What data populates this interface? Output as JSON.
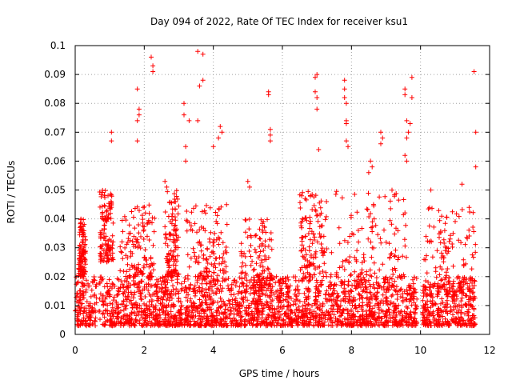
{
  "chart_data": {
    "type": "scatter",
    "title": "Day 094 of 2022, Rate Of TEC Index for receiver ksu1",
    "xlabel": "GPS time / hours",
    "ylabel": "ROTI / TECUs",
    "xlim": [
      0,
      12
    ],
    "ylim": [
      0,
      0.1
    ],
    "xticks": [
      "0",
      "2",
      "4",
      "6",
      "8",
      "10",
      "12"
    ],
    "yticks": [
      "0",
      "0.01",
      "0.02",
      "0.03",
      "0.04",
      "0.05",
      "0.06",
      "0.07",
      "0.08",
      "0.09",
      "0.1"
    ],
    "grid": true,
    "marker": "plus",
    "color": "#ff0000",
    "data_note": "Dense point cloud; base density approximated by a generator, notable outliers listed explicitly.",
    "baseline": {
      "x_range": [
        0,
        11.6
      ],
      "gap_hours": [
        [
          0.62,
          0.68
        ],
        [
          3.1,
          3.16
        ],
        [
          9.9,
          10.06
        ]
      ],
      "typical_range": [
        0.003,
        0.02
      ],
      "upper_clusters": [
        {
          "x": [
            0.1,
            0.3
          ],
          "y": [
            0.02,
            0.04
          ]
        },
        {
          "x": [
            0.7,
            1.1
          ],
          "y": [
            0.025,
            0.05
          ]
        },
        {
          "x": [
            1.3,
            2.3
          ],
          "y": [
            0.02,
            0.045
          ]
        },
        {
          "x": [
            2.6,
            3.0
          ],
          "y": [
            0.02,
            0.05
          ]
        },
        {
          "x": [
            3.2,
            4.4
          ],
          "y": [
            0.02,
            0.045
          ]
        },
        {
          "x": [
            4.8,
            5.7
          ],
          "y": [
            0.015,
            0.04
          ]
        },
        {
          "x": [
            6.5,
            7.3
          ],
          "y": [
            0.02,
            0.05
          ]
        },
        {
          "x": [
            7.4,
            9.6
          ],
          "y": [
            0.02,
            0.05
          ]
        },
        {
          "x": [
            10.1,
            11.6
          ],
          "y": [
            0.015,
            0.045
          ]
        }
      ]
    },
    "outliers": [
      {
        "x": 1.05,
        "y": 0.07
      },
      {
        "x": 1.05,
        "y": 0.067
      },
      {
        "x": 1.8,
        "y": 0.085
      },
      {
        "x": 1.85,
        "y": 0.078
      },
      {
        "x": 1.85,
        "y": 0.076
      },
      {
        "x": 1.8,
        "y": 0.074
      },
      {
        "x": 1.8,
        "y": 0.067
      },
      {
        "x": 2.2,
        "y": 0.096
      },
      {
        "x": 2.25,
        "y": 0.093
      },
      {
        "x": 2.25,
        "y": 0.091
      },
      {
        "x": 3.15,
        "y": 0.08
      },
      {
        "x": 3.15,
        "y": 0.076
      },
      {
        "x": 3.3,
        "y": 0.074
      },
      {
        "x": 3.2,
        "y": 0.065
      },
      {
        "x": 3.2,
        "y": 0.06
      },
      {
        "x": 3.55,
        "y": 0.098
      },
      {
        "x": 3.7,
        "y": 0.097
      },
      {
        "x": 3.6,
        "y": 0.086
      },
      {
        "x": 3.7,
        "y": 0.088
      },
      {
        "x": 3.55,
        "y": 0.074
      },
      {
        "x": 4.2,
        "y": 0.072
      },
      {
        "x": 4.25,
        "y": 0.07
      },
      {
        "x": 4.15,
        "y": 0.068
      },
      {
        "x": 4.0,
        "y": 0.065
      },
      {
        "x": 5.6,
        "y": 0.084
      },
      {
        "x": 5.6,
        "y": 0.083
      },
      {
        "x": 5.65,
        "y": 0.071
      },
      {
        "x": 5.65,
        "y": 0.069
      },
      {
        "x": 5.65,
        "y": 0.067
      },
      {
        "x": 6.95,
        "y": 0.089
      },
      {
        "x": 7.0,
        "y": 0.09
      },
      {
        "x": 6.95,
        "y": 0.084
      },
      {
        "x": 7.0,
        "y": 0.082
      },
      {
        "x": 7.0,
        "y": 0.078
      },
      {
        "x": 7.05,
        "y": 0.064
      },
      {
        "x": 7.8,
        "y": 0.088
      },
      {
        "x": 7.8,
        "y": 0.085
      },
      {
        "x": 7.8,
        "y": 0.082
      },
      {
        "x": 7.85,
        "y": 0.08
      },
      {
        "x": 7.85,
        "y": 0.074
      },
      {
        "x": 7.85,
        "y": 0.073
      },
      {
        "x": 7.85,
        "y": 0.067
      },
      {
        "x": 7.9,
        "y": 0.065
      },
      {
        "x": 8.85,
        "y": 0.07
      },
      {
        "x": 8.9,
        "y": 0.068
      },
      {
        "x": 8.85,
        "y": 0.066
      },
      {
        "x": 9.55,
        "y": 0.085
      },
      {
        "x": 9.55,
        "y": 0.083
      },
      {
        "x": 9.75,
        "y": 0.089
      },
      {
        "x": 9.75,
        "y": 0.082
      },
      {
        "x": 9.6,
        "y": 0.074
      },
      {
        "x": 9.7,
        "y": 0.073
      },
      {
        "x": 9.65,
        "y": 0.07
      },
      {
        "x": 9.6,
        "y": 0.068
      },
      {
        "x": 9.55,
        "y": 0.062
      },
      {
        "x": 9.6,
        "y": 0.06
      },
      {
        "x": 11.55,
        "y": 0.091
      },
      {
        "x": 11.6,
        "y": 0.07
      },
      {
        "x": 11.6,
        "y": 0.058
      },
      {
        "x": 11.2,
        "y": 0.052
      },
      {
        "x": 2.6,
        "y": 0.053
      },
      {
        "x": 2.65,
        "y": 0.051
      },
      {
        "x": 5.0,
        "y": 0.053
      },
      {
        "x": 5.05,
        "y": 0.051
      },
      {
        "x": 8.55,
        "y": 0.06
      },
      {
        "x": 8.6,
        "y": 0.058
      },
      {
        "x": 8.5,
        "y": 0.056
      },
      {
        "x": 10.3,
        "y": 0.05
      }
    ]
  }
}
